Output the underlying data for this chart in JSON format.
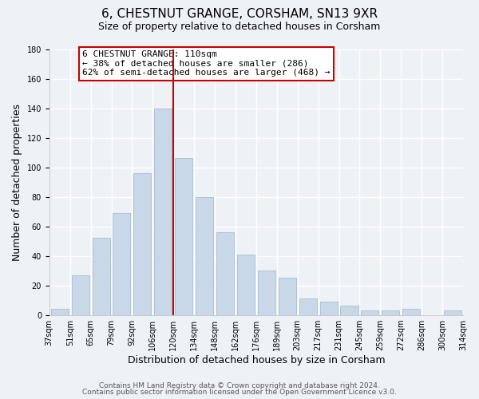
{
  "title": "6, CHESTNUT GRANGE, CORSHAM, SN13 9XR",
  "subtitle": "Size of property relative to detached houses in Corsham",
  "xlabel": "Distribution of detached houses by size in Corsham",
  "ylabel": "Number of detached properties",
  "bar_labels": [
    "37sqm",
    "51sqm",
    "65sqm",
    "79sqm",
    "92sqm",
    "106sqm",
    "120sqm",
    "134sqm",
    "148sqm",
    "162sqm",
    "176sqm",
    "189sqm",
    "203sqm",
    "217sqm",
    "231sqm",
    "245sqm",
    "259sqm",
    "272sqm",
    "286sqm",
    "300sqm",
    "314sqm"
  ],
  "bar_values": [
    4,
    27,
    52,
    69,
    96,
    140,
    106,
    80,
    56,
    41,
    30,
    25,
    11,
    9,
    6,
    3,
    3,
    4,
    0,
    3
  ],
  "bar_color": "#c8d8e8",
  "bar_edge_color": "#a8bdd0",
  "ref_line_x_label": "106sqm",
  "ref_line_color": "#cc0000",
  "annotation_text": "6 CHESTNUT GRANGE: 110sqm\n← 38% of detached houses are smaller (286)\n62% of semi-detached houses are larger (468) →",
  "annotation_box_color": "#ffffff",
  "annotation_box_edge": "#cc0000",
  "ylim": [
    0,
    180
  ],
  "yticks": [
    0,
    20,
    40,
    60,
    80,
    100,
    120,
    140,
    160,
    180
  ],
  "footer1": "Contains HM Land Registry data © Crown copyright and database right 2024.",
  "footer2": "Contains public sector information licensed under the Open Government Licence v3.0.",
  "bg_color": "#eef2f7",
  "plot_bg_color": "#eef2f7",
  "grid_color": "#ffffff",
  "title_fontsize": 11,
  "subtitle_fontsize": 9,
  "axis_label_fontsize": 9,
  "tick_fontsize": 7,
  "annotation_fontsize": 8,
  "footer_fontsize": 6.5
}
